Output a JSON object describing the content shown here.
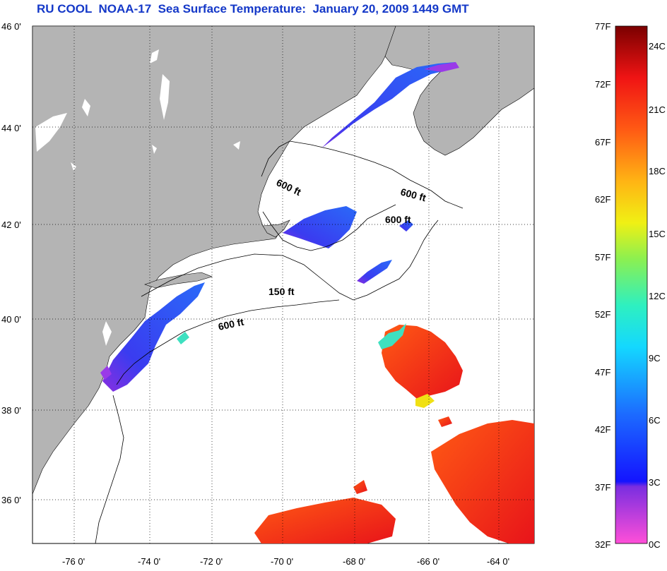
{
  "title": "RU COOL  NOAA-17  Sea Surface Temperature:  January 20, 2009 1449 GMT",
  "lat_ticks": [
    "46 0'",
    "44 0'",
    "42 0'",
    "40 0'",
    "38 0'",
    "36 0'"
  ],
  "lon_ticks": [
    "-76 0'",
    "-74 0'",
    "-72 0'",
    "-70 0'",
    "-68 0'",
    "-66 0'",
    "-64 0'"
  ],
  "contour_labels": [
    "600 ft",
    "600 ft",
    "600 ft",
    "150 ft",
    "600 ft"
  ],
  "colorbar": {
    "f_labels": [
      "77F",
      "72F",
      "67F",
      "62F",
      "57F",
      "52F",
      "47F",
      "42F",
      "37F",
      "32F"
    ],
    "c_labels": [
      "24C",
      "21C",
      "18C",
      "15C",
      "12C",
      "9C",
      "6C",
      "3C",
      "0C"
    ]
  },
  "colors": {
    "land": "#b4b4b4",
    "ocean": "#ffffff",
    "title": "#1438c8",
    "cold_water": "#2a4ff0",
    "warm_water": "#e8221a"
  }
}
